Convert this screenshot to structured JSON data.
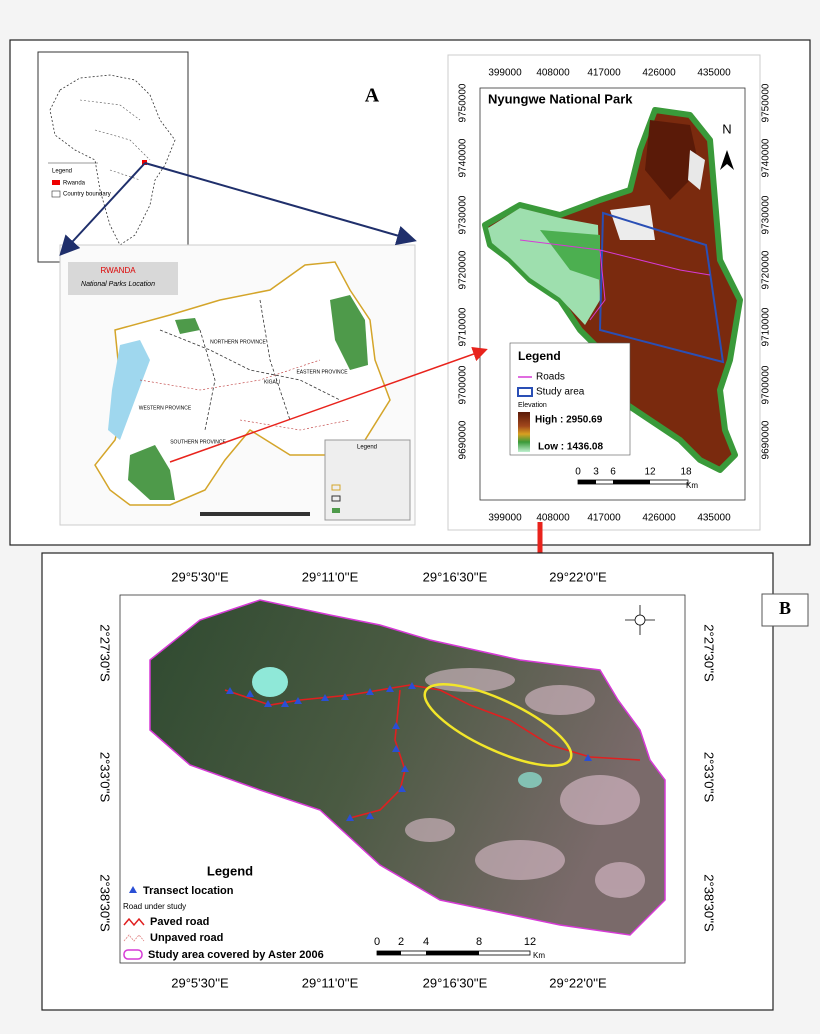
{
  "panel_a": {
    "label": "A",
    "africa_inset": {
      "legend_title": "Legend",
      "legend_items": [
        "Rwanda",
        "Country boundary"
      ]
    },
    "rwanda_map": {
      "title": "RWANDA",
      "subtitle": "National Parks Location",
      "regions": [
        "NORTHERN PROVINCE",
        "KIGALI",
        "EASTERN PROVINCE",
        "WESTERN PROVINCE",
        "SOUTHERN PROVINCE"
      ],
      "legend_title": "Legend"
    },
    "nyungwe_map": {
      "title": "Nyungwe National  Park",
      "x_ticks": [
        "399000",
        "408000",
        "417000",
        "426000",
        "435000"
      ],
      "y_ticks": [
        "9750000",
        "9740000",
        "9730000",
        "9720000",
        "9710000",
        "9700000",
        "9690000"
      ],
      "north": "N",
      "legend": {
        "title": "Legend",
        "items": [
          "Roads",
          "Study area"
        ],
        "elevation_title": "Elevation",
        "high": "High : 2950.69",
        "low": "Low : 1436.08"
      },
      "scale": {
        "ticks": [
          "0",
          "3",
          "6",
          "12",
          "18"
        ],
        "unit": "Km"
      }
    }
  },
  "panel_b": {
    "label": "B",
    "x_ticks": [
      "29°5'30''E",
      "29°11'0''E",
      "29°16'30''E",
      "29°22'0''E"
    ],
    "y_ticks": [
      "2°27'30''S",
      "2°33'0''S",
      "2°38'30''S"
    ],
    "legend": {
      "title": "Legend",
      "items": [
        "Transect location",
        "Road under study",
        "Paved road",
        "Unpaved road",
        "Study area covered by Aster 2006"
      ]
    },
    "scale": {
      "ticks": [
        "0",
        "2",
        "4",
        "8",
        "12"
      ],
      "unit": "Km"
    }
  }
}
